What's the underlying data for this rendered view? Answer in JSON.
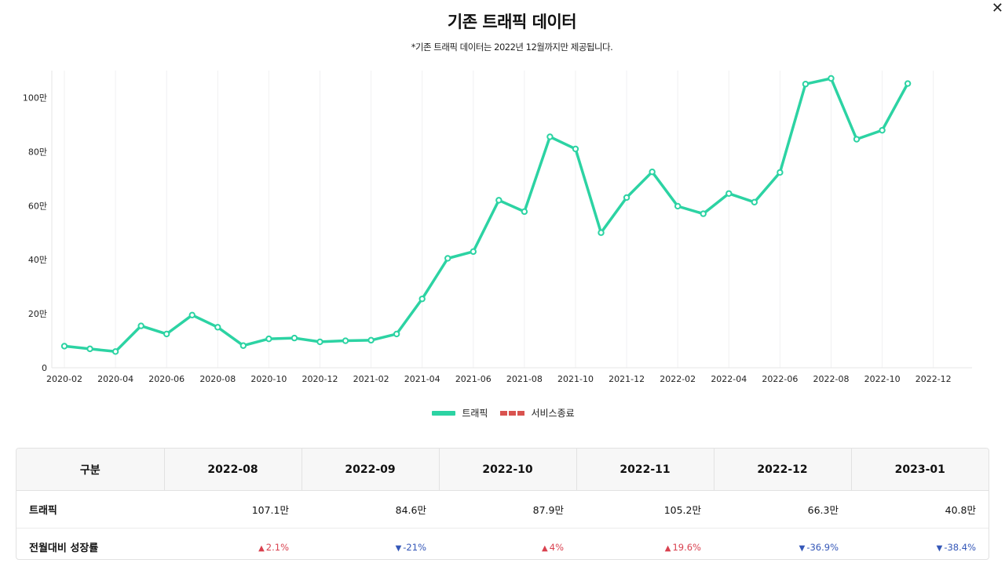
{
  "header": {
    "title": "기존 트래픽 데이터",
    "subtitle": "*기존 트래픽 데이터는 2022년 12월까지만 제공됩니다.",
    "close_icon": "close-icon"
  },
  "chart_data": {
    "type": "line",
    "x_tick_labels": [
      "2020-02",
      "2020-04",
      "2020-06",
      "2020-08",
      "2020-10",
      "2020-12",
      "2021-02",
      "2021-04",
      "2021-06",
      "2021-08",
      "2021-10",
      "2021-12",
      "2022-02",
      "2022-04",
      "2022-06",
      "2022-08",
      "2022-10",
      "2022-12"
    ],
    "y_tick_labels": [
      "0",
      "20만",
      "40만",
      "60만",
      "80만",
      "100만"
    ],
    "ylim": [
      0,
      110
    ],
    "y_unit": "만",
    "grid": "vertical",
    "series": [
      {
        "name": "트래픽",
        "color": "#2cd3a3",
        "x": [
          "2020-02",
          "2020-03",
          "2020-04",
          "2020-05",
          "2020-06",
          "2020-07",
          "2020-08",
          "2020-09",
          "2020-10",
          "2020-11",
          "2020-12",
          "2021-01",
          "2021-02",
          "2021-03",
          "2021-04",
          "2021-05",
          "2021-06",
          "2021-07",
          "2021-08",
          "2021-09",
          "2021-10",
          "2021-11",
          "2021-12",
          "2022-01",
          "2022-02",
          "2022-03",
          "2022-04",
          "2022-05",
          "2022-06",
          "2022-07",
          "2022-08",
          "2022-09",
          "2022-10",
          "2022-11"
        ],
        "values": [
          8,
          7,
          6,
          15.5,
          12.5,
          19.5,
          15,
          8.2,
          10.7,
          11,
          9.6,
          10,
          10.2,
          12.5,
          25.5,
          40.5,
          43,
          62,
          57.8,
          85.5,
          81,
          50,
          63,
          72.5,
          59.8,
          57,
          64.5,
          61.3,
          72.3,
          105,
          107.1,
          84.6,
          87.9,
          105.2
        ]
      }
    ],
    "legend": [
      {
        "name": "트래픽",
        "color": "#2cd3a3",
        "style": "solid"
      },
      {
        "name": "서비스종료",
        "color": "#d9534f",
        "style": "dashed"
      }
    ],
    "legend_position": "bottom-center"
  },
  "table": {
    "headers": [
      "구분",
      "2022-08",
      "2022-09",
      "2022-10",
      "2022-11",
      "2022-12",
      "2023-01"
    ],
    "traffic_label": "트래픽",
    "traffic_values": [
      "107.1만",
      "84.6만",
      "87.9만",
      "105.2만",
      "66.3만",
      "40.8만"
    ],
    "growth_label": "전월대비 성장률",
    "growth_values": [
      "2.1%",
      "-21%",
      "4%",
      "19.6%",
      "-36.9%",
      "-38.4%"
    ],
    "growth_directions": [
      "up",
      "down",
      "up",
      "up",
      "down",
      "down"
    ],
    "up_arrow": "▲",
    "down_arrow": "▼"
  }
}
